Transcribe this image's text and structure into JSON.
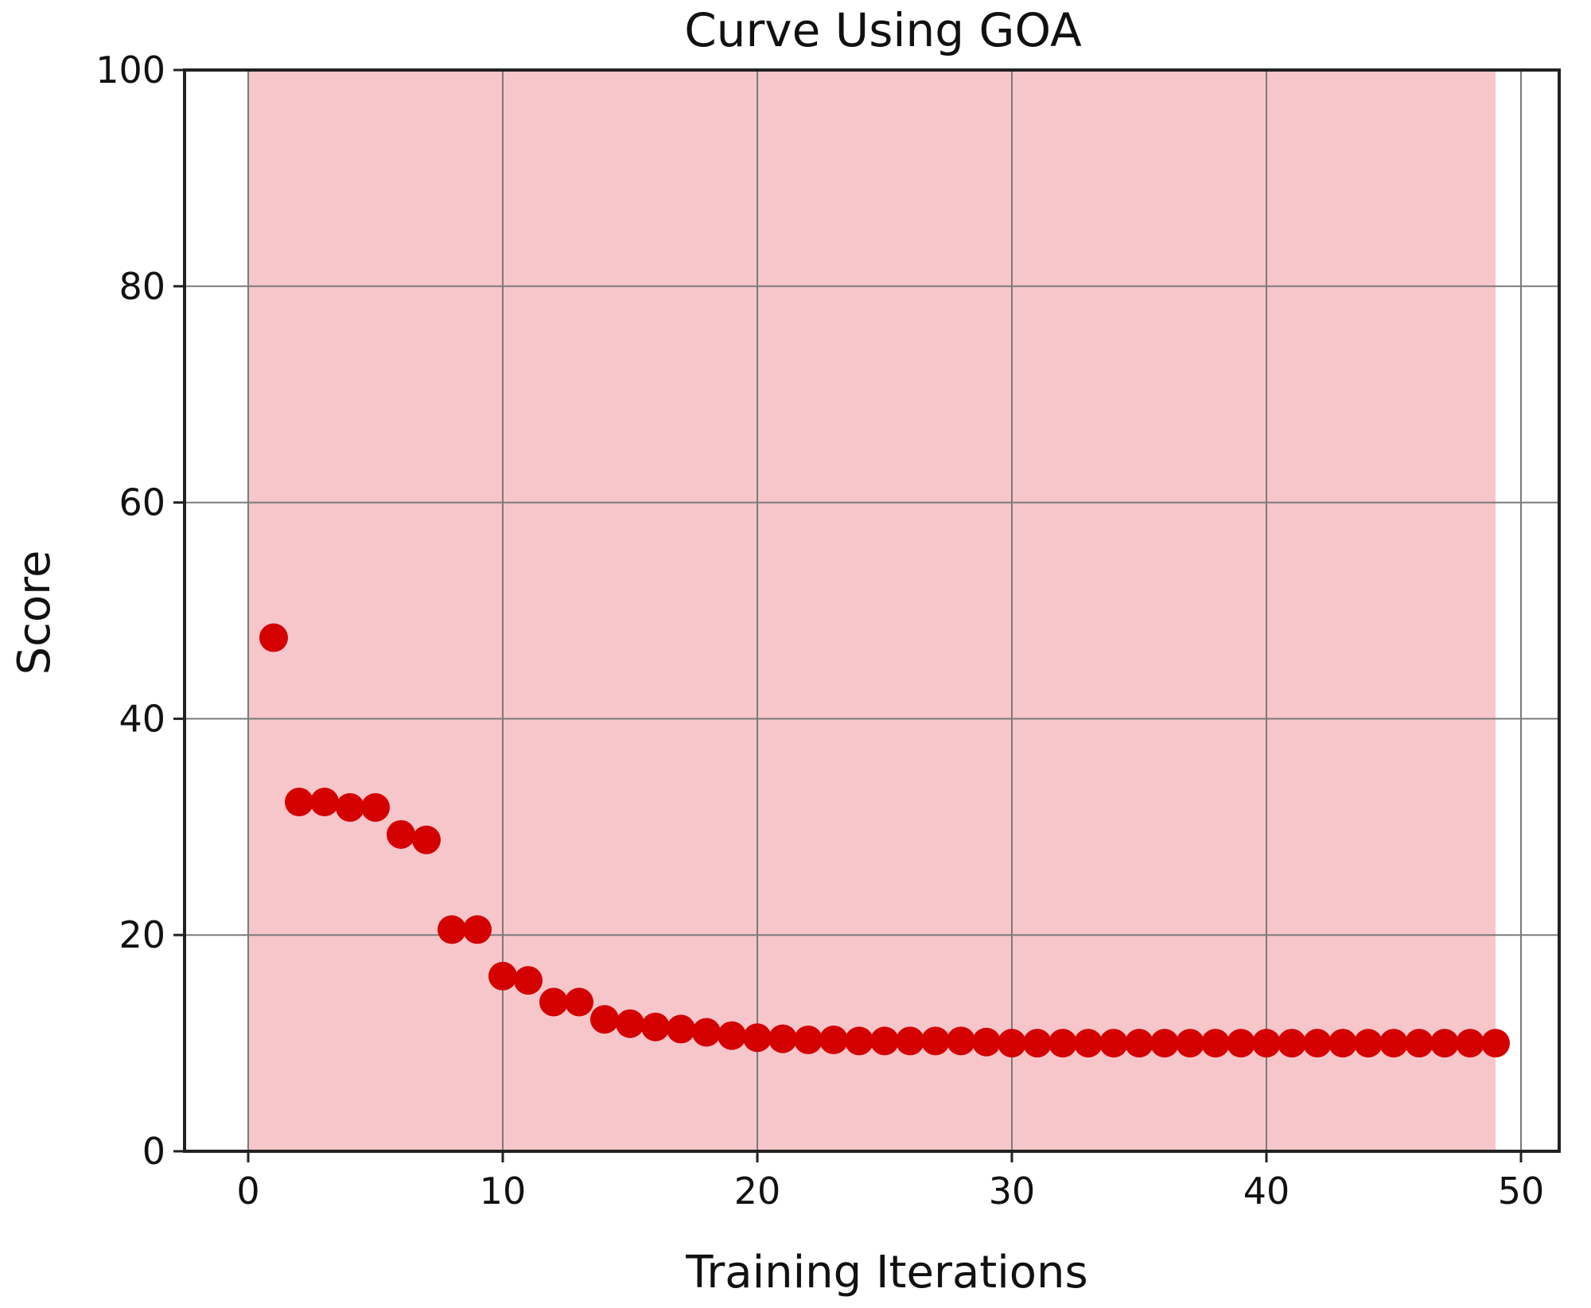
{
  "chart_data": {
    "type": "scatter",
    "title": "Curve Using GOA",
    "xlabel": "Training Iterations",
    "ylabel": "Score",
    "xlim": [
      -2.5,
      51.5
    ],
    "ylim": [
      0,
      100
    ],
    "xticks": [
      0,
      10,
      20,
      30,
      40,
      50
    ],
    "yticks": [
      0,
      20,
      40,
      60,
      80,
      100
    ],
    "grid": true,
    "shaded_x_range": [
      0,
      49
    ],
    "colors": {
      "marker": "#d40000",
      "shade": "#f7c6ca",
      "grid": "#7a7a7a",
      "axis": "#222222"
    },
    "series": [
      {
        "name": "Score",
        "x": [
          1,
          2,
          3,
          4,
          5,
          6,
          7,
          8,
          9,
          10,
          11,
          12,
          13,
          14,
          15,
          16,
          17,
          18,
          19,
          20,
          21,
          22,
          23,
          24,
          25,
          26,
          27,
          28,
          29,
          30,
          31,
          32,
          33,
          34,
          35,
          36,
          37,
          38,
          39,
          40,
          41,
          42,
          43,
          44,
          45,
          46,
          47,
          48,
          49
        ],
        "y": [
          47.5,
          32.3,
          32.3,
          31.8,
          31.8,
          29.3,
          28.8,
          20.5,
          20.5,
          16.2,
          15.8,
          13.8,
          13.8,
          12.2,
          11.8,
          11.5,
          11.3,
          11.0,
          10.7,
          10.5,
          10.4,
          10.3,
          10.3,
          10.2,
          10.2,
          10.2,
          10.2,
          10.2,
          10.1,
          10.0,
          10.0,
          10.0,
          10.0,
          10.0,
          10.0,
          10.0,
          10.0,
          10.0,
          10.0,
          10.0,
          10.0,
          10.0,
          10.0,
          10.0,
          10.0,
          10.0,
          10.0,
          10.0,
          10.0
        ]
      }
    ]
  }
}
